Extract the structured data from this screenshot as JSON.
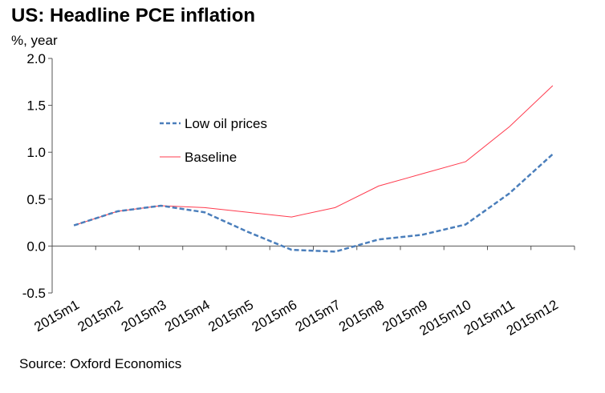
{
  "chart_data": {
    "type": "line",
    "title": "US: Headline PCE inflation",
    "ylabel": "%, year",
    "xlabel": "",
    "source": "Source: Oxford Economics",
    "categories": [
      "2015m1",
      "2015m2",
      "2015m3",
      "2015m4",
      "2015m5",
      "2015m6",
      "2015m7",
      "2015m8",
      "2015m9",
      "2015m10",
      "2015m11",
      "2015m12"
    ],
    "ylim": [
      -0.5,
      2.0
    ],
    "yticks": [
      "-0.5",
      "0.0",
      "0.5",
      "1.0",
      "1.5",
      "2.0"
    ],
    "grid": false,
    "legend_placement": "upper-left-center",
    "series": [
      {
        "name": "Low oil prices",
        "color": "#4a7ebb",
        "style": "dashed",
        "values": [
          0.22,
          0.37,
          0.43,
          0.36,
          0.15,
          -0.04,
          -0.06,
          0.07,
          0.12,
          0.23,
          0.56,
          0.98
        ]
      },
      {
        "name": "Baseline",
        "color": "#ff3b4e",
        "style": "solid",
        "values": [
          0.22,
          0.37,
          0.43,
          0.41,
          0.36,
          0.31,
          0.41,
          0.64,
          0.77,
          0.9,
          1.27,
          1.71
        ]
      }
    ]
  }
}
